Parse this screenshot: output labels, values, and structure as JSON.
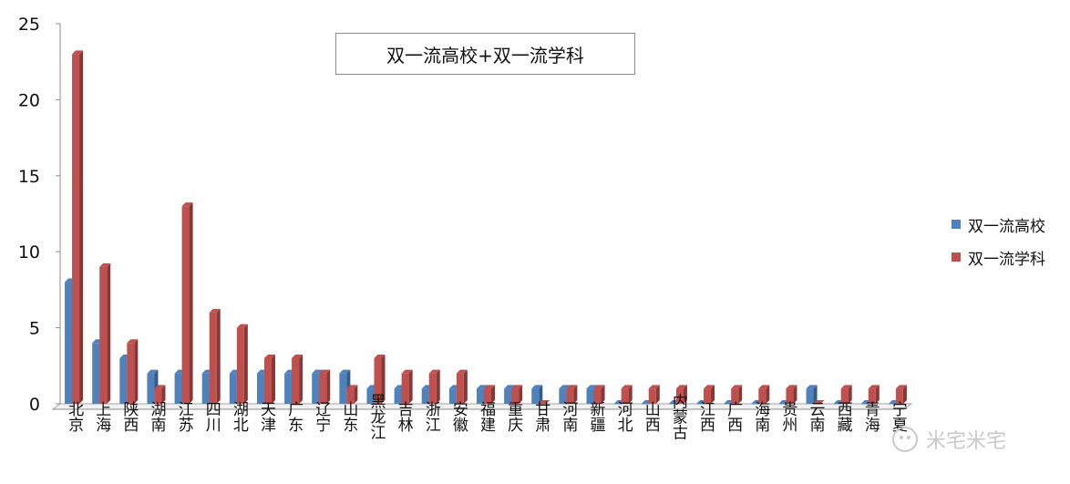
{
  "chart_data": {
    "type": "bar",
    "title": "双一流高校+双一流学科",
    "xlabel": "",
    "ylabel": "",
    "ylim": [
      0,
      25
    ],
    "yticks": [
      0,
      5,
      10,
      15,
      20,
      25
    ],
    "legend_position": "right",
    "grid": false,
    "categories": [
      "北京",
      "上海",
      "陕西",
      "湖南",
      "江苏",
      "四川",
      "湖北",
      "天津",
      "广东",
      "辽宁",
      "山东",
      "黑龙江",
      "吉林",
      "浙江",
      "安徽",
      "福建",
      "重庆",
      "甘肃",
      "河南",
      "新疆",
      "河北",
      "山西",
      "内蒙古",
      "江西",
      "广西",
      "海南",
      "贵州",
      "云南",
      "西藏",
      "青海",
      "宁夏"
    ],
    "series": [
      {
        "name": "双一流高校",
        "color": "#4f81bd",
        "values": [
          8,
          4,
          3,
          2,
          2,
          2,
          2,
          2,
          2,
          2,
          2,
          1,
          1,
          1,
          1,
          1,
          1,
          1,
          1,
          1,
          0,
          0,
          0,
          0,
          0,
          0,
          0,
          1,
          0,
          0,
          0
        ]
      },
      {
        "name": "双一流学科",
        "color": "#c0504d",
        "values": [
          23,
          9,
          4,
          1,
          13,
          6,
          5,
          3,
          3,
          2,
          1,
          3,
          2,
          2,
          2,
          1,
          1,
          0,
          1,
          1,
          1,
          1,
          1,
          1,
          1,
          1,
          1,
          0,
          1,
          1,
          1
        ]
      }
    ]
  },
  "watermark": {
    "text": "米宅米宅"
  }
}
